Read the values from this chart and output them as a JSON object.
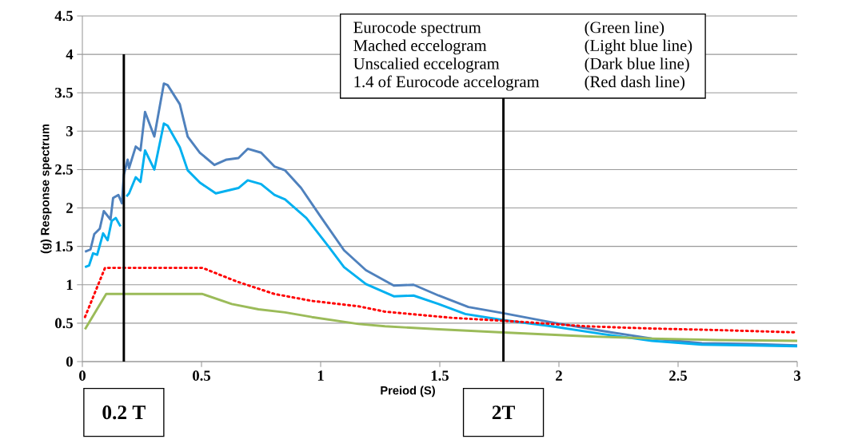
{
  "chart_data": {
    "type": "line",
    "xlabel": "Preiod (S)",
    "ylabel": "(g) Response spectrum",
    "xlim": [
      0,
      3
    ],
    "xticks": [
      0,
      0.5,
      1,
      1.5,
      2,
      2.5,
      3
    ],
    "ylim": [
      0,
      4.5
    ],
    "yticks": [
      0,
      0.5,
      1,
      1.5,
      2,
      2.5,
      3,
      3.5,
      4,
      4.5
    ],
    "grid": "y",
    "marker": "none",
    "series": [
      {
        "color": "#4f81bd",
        "line_style": "solid",
        "x": [
          0.011,
          0.034,
          0.05,
          0.073,
          0.09,
          0.118,
          0.129,
          0.151,
          0.166,
          0.174,
          0.19,
          0.196,
          0.224,
          0.244,
          0.263,
          0.302,
          0.342,
          0.358,
          0.409,
          0.442,
          0.493,
          0.554,
          0.605,
          0.655,
          0.694,
          0.75,
          0.806,
          0.851,
          0.918,
          0.997,
          1.098,
          1.19,
          1.307,
          1.39,
          1.495,
          1.62,
          1.767,
          1.97,
          2.18,
          2.39,
          2.6,
          2.81,
          3.0
        ],
        "values": [
          1.43,
          1.46,
          1.66,
          1.73,
          1.96,
          1.85,
          2.13,
          2.17,
          2.06,
          2.43,
          2.63,
          2.52,
          2.8,
          2.75,
          3.25,
          2.93,
          3.62,
          3.6,
          3.35,
          2.93,
          2.72,
          2.56,
          2.63,
          2.65,
          2.77,
          2.72,
          2.54,
          2.49,
          2.26,
          1.9,
          1.45,
          1.19,
          0.99,
          1.0,
          0.86,
          0.71,
          0.63,
          0.51,
          0.4,
          0.3,
          0.24,
          0.23,
          0.21
        ]
      },
      {
        "color": "#00b0f0",
        "line_style": "solid",
        "x": [
          0.011,
          0.028,
          0.045,
          0.062,
          0.073,
          0.087,
          0.106,
          0.123,
          0.14,
          0.16,
          null,
          0.185,
          0.196,
          0.224,
          0.244,
          0.263,
          0.302,
          0.342,
          0.358,
          0.409,
          0.442,
          0.493,
          0.56,
          0.627,
          0.655,
          0.694,
          0.75,
          0.806,
          0.851,
          0.94,
          1.03,
          1.098,
          1.19,
          1.307,
          1.39,
          1.495,
          1.607,
          1.767,
          1.97,
          2.18,
          2.39,
          2.6,
          2.81,
          3.0
        ],
        "values": [
          1.23,
          1.25,
          1.41,
          1.39,
          1.51,
          1.67,
          1.58,
          1.83,
          1.87,
          1.76,
          null,
          2.15,
          2.19,
          2.4,
          2.34,
          2.75,
          2.5,
          3.1,
          3.07,
          2.79,
          2.49,
          2.33,
          2.19,
          2.24,
          2.26,
          2.36,
          2.31,
          2.17,
          2.11,
          1.87,
          1.51,
          1.23,
          1.01,
          0.85,
          0.86,
          0.75,
          0.62,
          0.54,
          0.46,
          0.36,
          0.27,
          0.22,
          0.21,
          0.2
        ]
      },
      {
        "color": "#ff0000",
        "line_style": "dotted",
        "x": [
          0.011,
          0.095,
          0.504,
          0.65,
          0.806,
          0.963,
          1.159,
          1.27,
          1.55,
          1.83,
          2.11,
          2.39,
          2.67,
          3.0
        ],
        "values": [
          0.58,
          1.22,
          1.22,
          1.04,
          0.88,
          0.79,
          0.72,
          0.65,
          0.57,
          0.52,
          0.46,
          0.43,
          0.41,
          0.38
        ]
      },
      {
        "color": "#9bbb59",
        "line_style": "solid",
        "x": [
          0.011,
          0.1,
          0.504,
          0.627,
          0.739,
          0.851,
          0.963,
          1.159,
          1.27,
          1.495,
          1.767,
          2.11,
          2.39,
          2.67,
          3.0
        ],
        "values": [
          0.42,
          0.88,
          0.88,
          0.75,
          0.68,
          0.64,
          0.58,
          0.49,
          0.46,
          0.42,
          0.38,
          0.33,
          0.3,
          0.28,
          0.27
        ]
      }
    ],
    "ref_lines": [
      {
        "axis": "x",
        "value": 0.174,
        "label": "0.2 T",
        "color": "#000000"
      },
      {
        "axis": "x",
        "value": 1.767,
        "label": "2T",
        "color": "#000000"
      }
    ],
    "annotations": [
      "Eurocode  spectrum",
      "(Green line)",
      "Mached eccelogram",
      "(Light blue line)",
      "Unscalied eccelogram",
      "(Dark blue line)",
      "1.4 of Eurocode accelogram",
      "(Red dash line)"
    ]
  }
}
